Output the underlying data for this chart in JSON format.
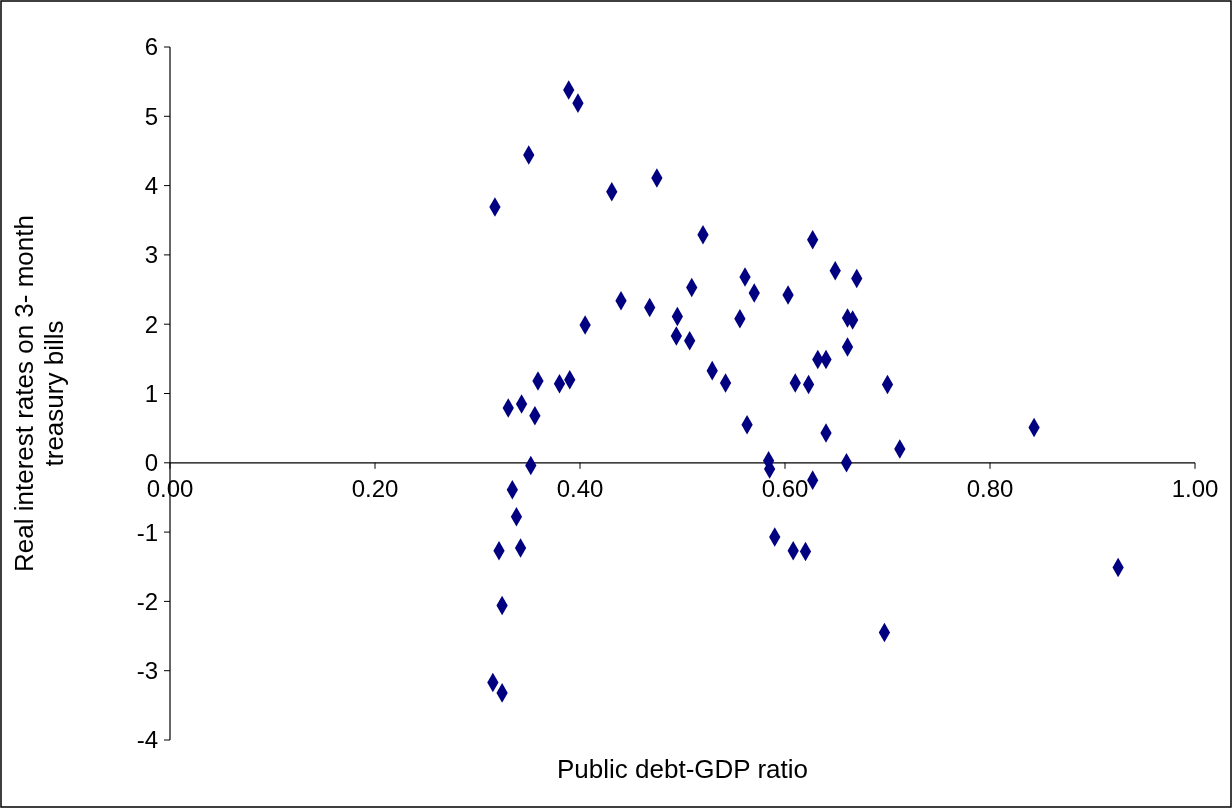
{
  "chart_data": {
    "type": "scatter",
    "xlabel": "Public debt-GDP ratio",
    "ylabel": "Real interest rates on 3- month treasury bills",
    "xlim": [
      0,
      1
    ],
    "xticks": [
      {
        "value": 0,
        "label": "0.00"
      },
      {
        "value": 0.2,
        "label": "0.20"
      },
      {
        "value": 0.4,
        "label": "0.40"
      },
      {
        "value": 0.6,
        "label": "0.60"
      },
      {
        "value": 0.8,
        "label": "0.80"
      },
      {
        "value": 1,
        "label": "1.00"
      }
    ],
    "ylim": [
      -4,
      6
    ],
    "yticks": [
      -4,
      -3,
      -2,
      -1,
      0,
      1,
      2,
      3,
      4,
      5,
      6
    ],
    "marker": "diamond",
    "series": [
      {
        "color": "#000080",
        "x": [
          0.317,
          0.389,
          0.398,
          0.35,
          0.431,
          0.475,
          0.52,
          0.44,
          0.405,
          0.468,
          0.495,
          0.494,
          0.509,
          0.507,
          0.529,
          0.542,
          0.556,
          0.561,
          0.57,
          0.563,
          0.33,
          0.343,
          0.359,
          0.356,
          0.38,
          0.39,
          0.352,
          0.334,
          0.338,
          0.342,
          0.321,
          0.324,
          0.315,
          0.324,
          0.584,
          0.585,
          0.59,
          0.608,
          0.62,
          0.603,
          0.61,
          0.623,
          0.627,
          0.627,
          0.632,
          0.64,
          0.64,
          0.649,
          0.661,
          0.666,
          0.661,
          0.66,
          0.67,
          0.7,
          0.712,
          0.697,
          0.843,
          0.925
        ],
        "values": [
          3.69,
          5.38,
          5.19,
          4.44,
          3.91,
          4.11,
          3.29,
          2.34,
          1.99,
          2.24,
          2.11,
          1.83,
          2.53,
          1.76,
          1.33,
          1.15,
          2.08,
          2.68,
          2.45,
          0.55,
          0.79,
          0.85,
          1.18,
          0.68,
          1.14,
          1.2,
          -0.04,
          -0.39,
          -0.78,
          -1.23,
          -1.27,
          -2.06,
          -3.17,
          -3.32,
          0.03,
          -0.09,
          -1.07,
          -1.27,
          -1.28,
          2.42,
          1.15,
          1.13,
          3.22,
          -0.25,
          1.49,
          1.49,
          0.43,
          2.77,
          2.09,
          2.06,
          1.67,
          0.0,
          2.66,
          1.13,
          0.2,
          -2.45,
          0.51,
          -1.51
        ]
      }
    ]
  }
}
